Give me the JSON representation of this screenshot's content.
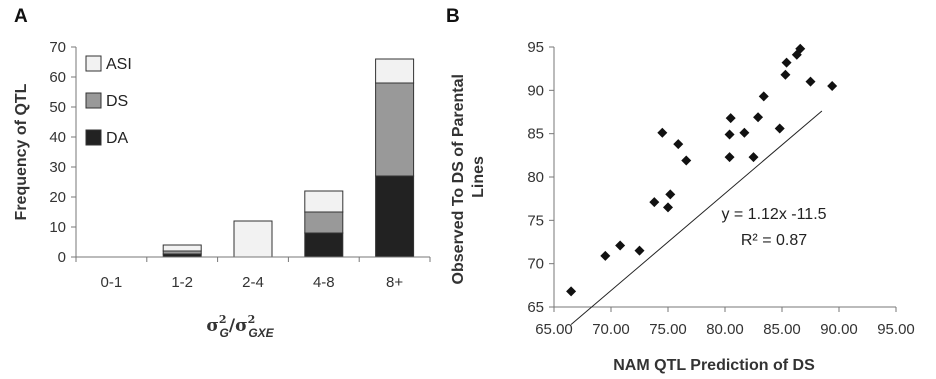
{
  "chart_data": [
    {
      "type": "bar",
      "stacked": true,
      "panel_label": "A",
      "ylabel": "Frequency of QTL",
      "xlabel": "σ²G/σ²GXE",
      "xlabel_parts": {
        "sigma": "σ",
        "sup": "2",
        "sub_num": "G",
        "slash": "/",
        "sub_den": "GXE"
      },
      "categories": [
        "0-1",
        "1-2",
        "2-4",
        "4-8",
        "8+"
      ],
      "ylim": [
        0,
        70
      ],
      "yticks": [
        0,
        10,
        20,
        30,
        40,
        50,
        60,
        70
      ],
      "grid": false,
      "legend_position": "top-left",
      "series": [
        {
          "name": "DA",
          "color": "#222222",
          "values": [
            0,
            1,
            0,
            8,
            27
          ]
        },
        {
          "name": "DS",
          "color": "#999999",
          "values": [
            0,
            1,
            0,
            7,
            31
          ]
        },
        {
          "name": "ASI",
          "color": "#f2f2f2",
          "values": [
            0,
            2,
            12,
            7,
            8
          ]
        }
      ]
    },
    {
      "type": "scatter",
      "panel_label": "B",
      "xlabel": "NAM QTL Prediction of DS",
      "ylabel_lines": [
        "Observed To DS of Parental",
        "Lines"
      ],
      "xlim": [
        65,
        95
      ],
      "ylim": [
        65,
        95
      ],
      "xticks": [
        "65.00",
        "70.00",
        "75.00",
        "80.00",
        "85.00",
        "90.00",
        "95.00"
      ],
      "yticks": [
        "65",
        "70",
        "75",
        "80",
        "85",
        "90",
        "95"
      ],
      "grid": false,
      "marker": "diamond",
      "points": [
        {
          "x": 66.5,
          "y": 66.8
        },
        {
          "x": 69.5,
          "y": 70.9
        },
        {
          "x": 70.8,
          "y": 72.1
        },
        {
          "x": 72.5,
          "y": 71.5
        },
        {
          "x": 73.8,
          "y": 77.1
        },
        {
          "x": 74.5,
          "y": 85.1
        },
        {
          "x": 75.0,
          "y": 76.5
        },
        {
          "x": 75.2,
          "y": 78.0
        },
        {
          "x": 75.9,
          "y": 83.8
        },
        {
          "x": 76.6,
          "y": 81.9
        },
        {
          "x": 80.4,
          "y": 82.3
        },
        {
          "x": 80.4,
          "y": 84.9
        },
        {
          "x": 80.5,
          "y": 86.8
        },
        {
          "x": 81.7,
          "y": 85.1
        },
        {
          "x": 82.5,
          "y": 82.3
        },
        {
          "x": 82.9,
          "y": 86.9
        },
        {
          "x": 83.4,
          "y": 89.3
        },
        {
          "x": 84.8,
          "y": 85.6
        },
        {
          "x": 85.3,
          "y": 91.8
        },
        {
          "x": 85.4,
          "y": 93.2
        },
        {
          "x": 86.3,
          "y": 94.1
        },
        {
          "x": 86.6,
          "y": 94.8
        },
        {
          "x": 87.5,
          "y": 91.0
        },
        {
          "x": 89.4,
          "y": 90.5
        }
      ],
      "trendline": {
        "slope": 1.12,
        "intercept": -11.5,
        "x_range": [
          66.5,
          88.5
        ]
      },
      "annotations": {
        "equation": "y = 1.12x -11.5",
        "r_squared": "R² = 0.87"
      }
    }
  ]
}
